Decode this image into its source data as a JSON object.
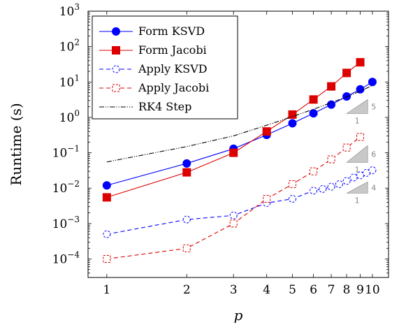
{
  "chart_data": {
    "type": "line",
    "xscale": "log",
    "yscale": "log",
    "xlabel": "p",
    "ylabel": "Runtime (s)",
    "xlim": [
      0.85,
      11.5
    ],
    "ylim": [
      3e-05,
      1000
    ],
    "x_ticks": [
      1,
      2,
      3,
      4,
      5,
      6,
      7,
      8,
      9,
      10
    ],
    "x_tick_labels": [
      "1",
      "2",
      "3",
      "4",
      "5",
      "6",
      "7",
      "8",
      "9",
      "10"
    ],
    "y_tick_exponents": [
      -4,
      -3,
      -2,
      -1,
      0,
      1,
      2,
      3
    ],
    "y_tick_base": "10",
    "grid": false,
    "legend_position": "top-left",
    "series": [
      {
        "name": "Form KSVD",
        "color": "#0000ff",
        "dash": "solid",
        "marker": "circle",
        "x": [
          1,
          2,
          3,
          4,
          5,
          6,
          7,
          8,
          9,
          10
        ],
        "y": [
          0.012,
          0.05,
          0.13,
          0.32,
          0.68,
          1.3,
          2.3,
          3.9,
          6.2,
          10
        ]
      },
      {
        "name": "Form Jacobi",
        "color": "#dd0000",
        "dash": "solid",
        "marker": "square",
        "x": [
          1,
          2,
          3,
          4,
          5,
          6,
          7,
          8,
          9
        ],
        "y": [
          0.0055,
          0.028,
          0.1,
          0.4,
          1.2,
          3.2,
          7.5,
          18,
          36
        ]
      },
      {
        "name": "Apply KSVD",
        "color": "#0000ff",
        "dash": "dashed",
        "marker": "circle-open",
        "x": [
          1,
          2,
          3,
          4,
          5,
          6,
          6.5,
          7,
          7.5,
          8,
          8.5,
          9,
          9.5,
          10
        ],
        "y": [
          0.0005,
          0.0013,
          0.0017,
          0.0038,
          0.005,
          0.0085,
          0.0095,
          0.011,
          0.013,
          0.016,
          0.02,
          0.023,
          0.027,
          0.032
        ]
      },
      {
        "name": "Apply Jacobi",
        "color": "#dd0000",
        "dash": "dashed",
        "marker": "square-open",
        "x": [
          1,
          2,
          3,
          4,
          5,
          6,
          7,
          8,
          9
        ],
        "y": [
          0.0001,
          0.0002,
          0.001,
          0.005,
          0.013,
          0.03,
          0.065,
          0.14,
          0.28
        ]
      },
      {
        "name": "RK4 Step",
        "color": "#000000",
        "dash": "dashdotdot",
        "marker": "none",
        "x": [
          1,
          2,
          3,
          4,
          5,
          6,
          7,
          8,
          9,
          10
        ],
        "y": [
          0.055,
          0.15,
          0.3,
          0.6,
          1.05,
          1.7,
          2.6,
          3.8,
          5.5,
          8.0
        ]
      }
    ],
    "slope_triangles": [
      {
        "x_start": 8,
        "x_end": 9.6,
        "y_end": 3.2,
        "slope": 5,
        "run_label": "1",
        "rise_label": "5"
      },
      {
        "x_start": 8,
        "x_end": 9.6,
        "y_end": 0.16,
        "slope": 6,
        "run_label": "1",
        "rise_label": "6"
      },
      {
        "x_start": 8,
        "x_end": 9.6,
        "y_end": 0.015,
        "slope": 4,
        "run_label": "1",
        "rise_label": "4"
      }
    ]
  }
}
